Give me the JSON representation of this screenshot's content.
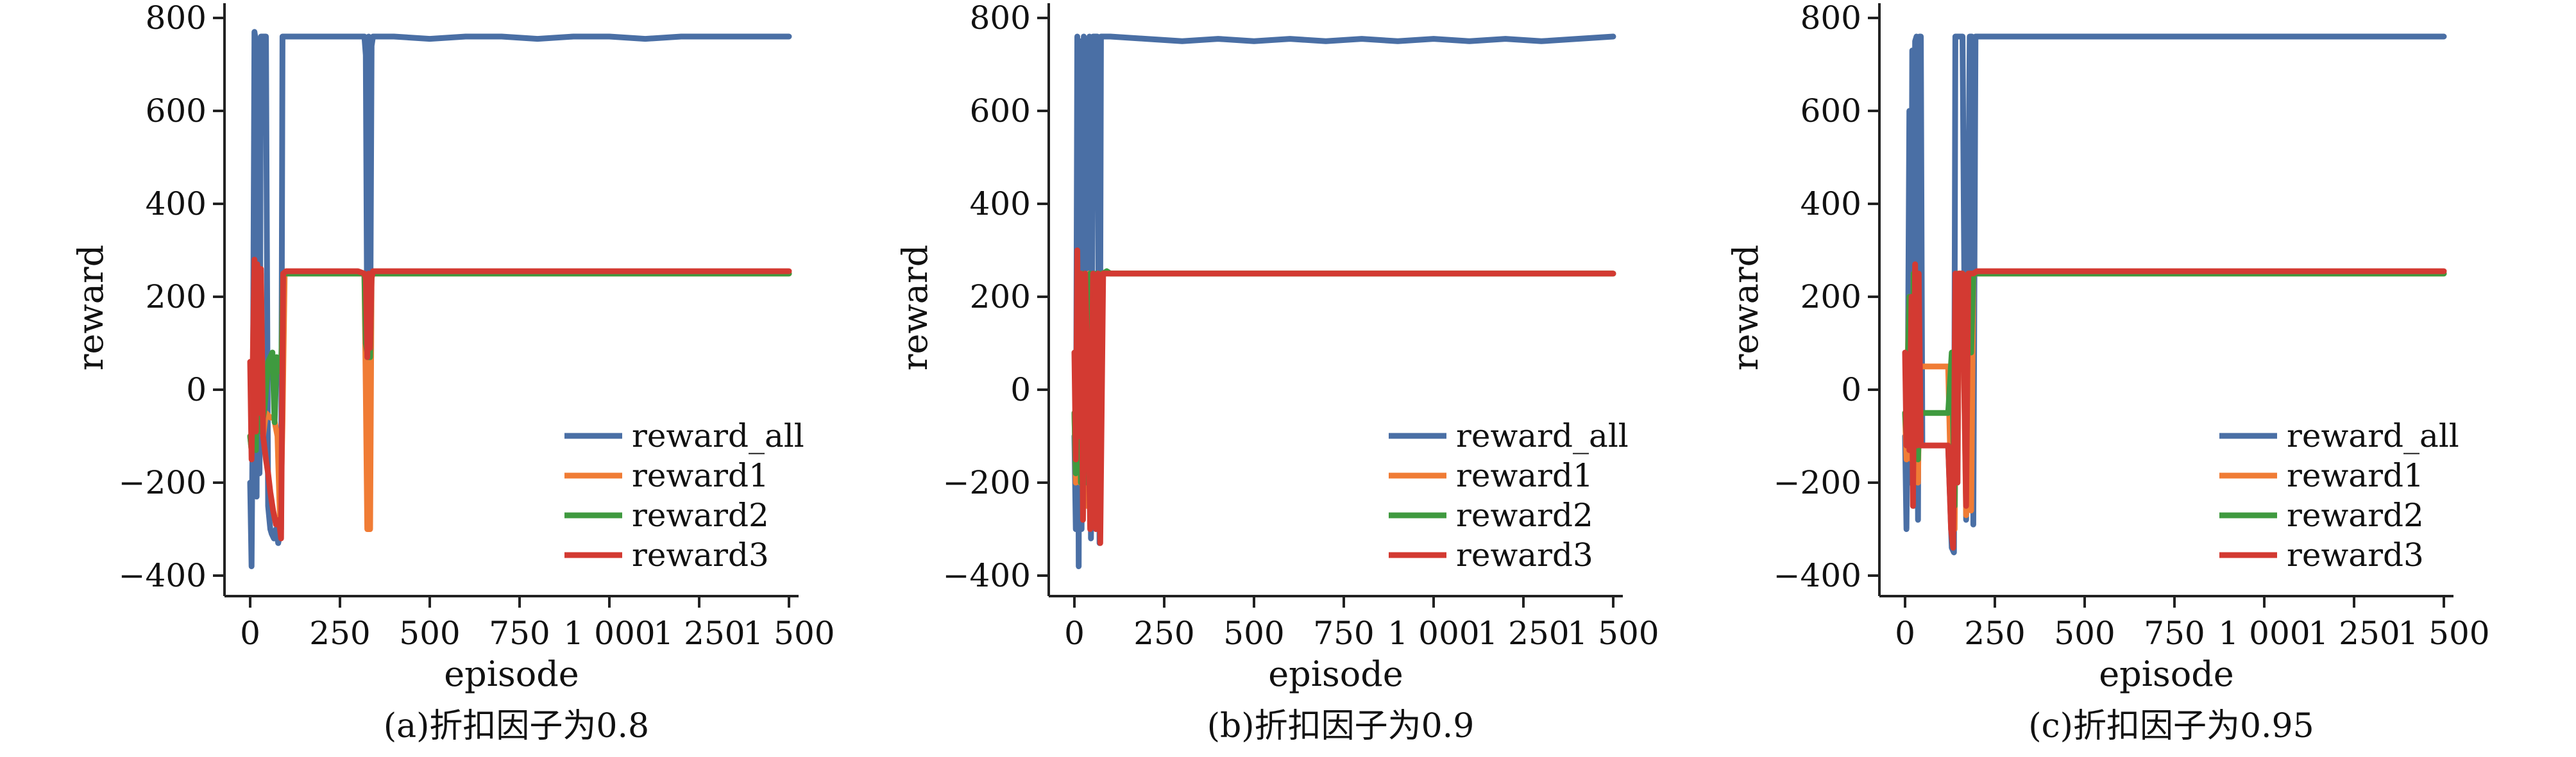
{
  "chart_data": [
    {
      "type": "line",
      "caption": "(a)折扣因子为0.8",
      "xlabel": "episode",
      "ylabel": "reward",
      "xlim": [
        0,
        1500
      ],
      "ylim": [
        -400,
        800
      ],
      "xticks": [
        0,
        250,
        500,
        750,
        1000,
        1250,
        1500
      ],
      "xtick_labels": [
        "0",
        "250",
        "500",
        "750",
        "1 000",
        "1 250",
        "1 500"
      ],
      "yticks": [
        -400,
        -200,
        0,
        200,
        400,
        600,
        800
      ],
      "ytick_labels": [
        "−400",
        "−200",
        "0",
        "200",
        "400",
        "600",
        "800"
      ],
      "legend_position": "lower-right",
      "series": [
        {
          "name": "reward_all",
          "color": "#4a6fa5",
          "x": [
            0,
            4,
            8,
            12,
            14,
            18,
            22,
            26,
            30,
            36,
            44,
            50,
            56,
            60,
            66,
            72,
            78,
            86,
            90,
            94,
            98,
            100,
            150,
            200,
            250,
            300,
            318,
            322,
            326,
            330,
            334,
            338,
            342,
            400,
            500,
            600,
            700,
            800,
            900,
            1000,
            1100,
            1200,
            1300,
            1400,
            1500
          ],
          "y": [
            -200,
            -380,
            50,
            770,
            760,
            -230,
            720,
            -180,
            760,
            760,
            760,
            -250,
            -300,
            -310,
            -320,
            -300,
            -330,
            -300,
            760,
            760,
            760,
            760,
            760,
            760,
            760,
            760,
            760,
            720,
            80,
            760,
            60,
            740,
            760,
            760,
            755,
            760,
            760,
            755,
            760,
            760,
            755,
            760,
            760,
            760,
            760
          ]
        },
        {
          "name": "reward1",
          "color": "#f07c35",
          "x": [
            0,
            4,
            8,
            12,
            16,
            20,
            26,
            30,
            36,
            44,
            56,
            66,
            76,
            84,
            90,
            96,
            100,
            200,
            300,
            318,
            322,
            326,
            330,
            334,
            338,
            342,
            400,
            600,
            800,
            1000,
            1200,
            1400,
            1500
          ],
          "y": [
            -100,
            -130,
            40,
            270,
            -80,
            260,
            -80,
            250,
            -100,
            -50,
            -60,
            -60,
            -100,
            -300,
            -70,
            250,
            250,
            250,
            250,
            250,
            0,
            -300,
            -300,
            -300,
            250,
            250,
            250,
            250,
            250,
            250,
            250,
            250,
            250
          ]
        },
        {
          "name": "reward2",
          "color": "#3f9a3f",
          "x": [
            0,
            4,
            8,
            12,
            16,
            22,
            30,
            40,
            50,
            56,
            62,
            68,
            74,
            80,
            86,
            92,
            100,
            200,
            300,
            318,
            322,
            326,
            330,
            334,
            338,
            342,
            500,
            700,
            900,
            1100,
            1300,
            1500
          ],
          "y": [
            -100,
            -130,
            60,
            250,
            -130,
            250,
            -90,
            -40,
            60,
            70,
            80,
            -70,
            70,
            40,
            40,
            250,
            250,
            250,
            250,
            250,
            100,
            80,
            70,
            70,
            250,
            250,
            250,
            250,
            250,
            250,
            250,
            250
          ]
        },
        {
          "name": "reward3",
          "color": "#d33a32",
          "x": [
            0,
            4,
            8,
            12,
            16,
            20,
            26,
            30,
            36,
            44,
            50,
            56,
            64,
            72,
            80,
            86,
            92,
            100,
            200,
            300,
            318,
            322,
            326,
            330,
            334,
            338,
            342,
            400,
            600,
            800,
            1000,
            1200,
            1400,
            1500
          ],
          "y": [
            60,
            -150,
            100,
            280,
            -90,
            270,
            -50,
            260,
            -100,
            -150,
            -180,
            -220,
            -260,
            -290,
            -280,
            -320,
            250,
            255,
            255,
            255,
            250,
            240,
            70,
            250,
            90,
            240,
            255,
            255,
            255,
            255,
            255,
            255,
            255,
            255
          ]
        }
      ]
    },
    {
      "type": "line",
      "caption": "(b)折扣因子为0.9",
      "xlabel": "episode",
      "ylabel": "reward",
      "xlim": [
        0,
        1500
      ],
      "ylim": [
        -400,
        800
      ],
      "xticks": [
        0,
        250,
        500,
        750,
        1000,
        1250,
        1500
      ],
      "xtick_labels": [
        "0",
        "250",
        "500",
        "750",
        "1 000",
        "1 250",
        "1 500"
      ],
      "yticks": [
        -400,
        -200,
        0,
        200,
        400,
        600,
        800
      ],
      "ytick_labels": [
        "−400",
        "−200",
        "0",
        "200",
        "400",
        "600",
        "800"
      ],
      "legend_position": "lower-right",
      "series": [
        {
          "name": "reward_all",
          "color": "#4a6fa5",
          "x": [
            0,
            4,
            8,
            12,
            16,
            20,
            26,
            30,
            36,
            42,
            46,
            52,
            58,
            64,
            70,
            74,
            80,
            86,
            90,
            100,
            200,
            300,
            400,
            500,
            600,
            700,
            800,
            900,
            1000,
            1100,
            1200,
            1300,
            1400,
            1500
          ],
          "y": [
            -100,
            -300,
            760,
            -380,
            750,
            -300,
            760,
            740,
            -200,
            760,
            -320,
            760,
            760,
            760,
            -330,
            760,
            760,
            760,
            760,
            760,
            755,
            750,
            755,
            750,
            755,
            750,
            755,
            750,
            755,
            750,
            755,
            750,
            755,
            760
          ]
        },
        {
          "name": "reward1",
          "color": "#f07c35",
          "x": [
            0,
            4,
            8,
            12,
            16,
            22,
            28,
            34,
            40,
            48,
            56,
            64,
            70,
            76,
            84,
            90,
            100,
            300,
            500,
            700,
            900,
            1100,
            1300,
            1500
          ],
          "y": [
            -50,
            -200,
            80,
            250,
            -200,
            250,
            100,
            -250,
            250,
            50,
            -250,
            250,
            -280,
            250,
            250,
            250,
            250,
            250,
            250,
            250,
            250,
            250,
            250,
            250
          ]
        },
        {
          "name": "reward2",
          "color": "#3f9a3f",
          "x": [
            0,
            4,
            8,
            12,
            18,
            24,
            30,
            36,
            44,
            52,
            60,
            66,
            72,
            80,
            90,
            100,
            300,
            500,
            700,
            900,
            1100,
            1300,
            1500
          ],
          "y": [
            -50,
            -180,
            80,
            240,
            -200,
            250,
            60,
            -200,
            250,
            -250,
            250,
            -250,
            250,
            250,
            255,
            250,
            250,
            250,
            250,
            250,
            250,
            250,
            250
          ]
        },
        {
          "name": "reward3",
          "color": "#d33a32",
          "x": [
            0,
            4,
            8,
            12,
            18,
            24,
            30,
            36,
            44,
            52,
            60,
            66,
            72,
            80,
            90,
            100,
            300,
            500,
            700,
            900,
            1100,
            1300,
            1500
          ],
          "y": [
            80,
            -150,
            300,
            -100,
            250,
            -280,
            250,
            60,
            -300,
            250,
            -300,
            250,
            -330,
            250,
            250,
            250,
            250,
            250,
            250,
            250,
            250,
            250,
            250
          ]
        }
      ]
    },
    {
      "type": "line",
      "caption": "(c)折扣因子为0.95",
      "xlabel": "episode",
      "ylabel": "reward",
      "xlim": [
        0,
        1500
      ],
      "ylim": [
        -400,
        800
      ],
      "xticks": [
        0,
        250,
        500,
        750,
        1000,
        1250,
        1500
      ],
      "xtick_labels": [
        "0",
        "250",
        "500",
        "750",
        "1 000",
        "1 250",
        "1 500"
      ],
      "yticks": [
        -400,
        -200,
        0,
        200,
        400,
        600,
        800
      ],
      "ytick_labels": [
        "−400",
        "−200",
        "0",
        "200",
        "400",
        "600",
        "800"
      ],
      "legend_position": "lower-right",
      "series": [
        {
          "name": "reward_all",
          "color": "#4a6fa5",
          "x": [
            0,
            4,
            8,
            12,
            16,
            20,
            24,
            28,
            32,
            36,
            40,
            44,
            48,
            54,
            60,
            70,
            80,
            100,
            120,
            130,
            136,
            140,
            146,
            150,
            160,
            170,
            180,
            186,
            190,
            196,
            200,
            300,
            400,
            600,
            800,
            1000,
            1200,
            1400,
            1500
          ],
          "y": [
            -100,
            -300,
            50,
            600,
            -200,
            730,
            -250,
            750,
            760,
            -280,
            760,
            760,
            -120,
            -120,
            -120,
            -120,
            -120,
            -120,
            -120,
            -340,
            -350,
            760,
            760,
            760,
            760,
            -280,
            760,
            760,
            -290,
            760,
            760,
            760,
            760,
            760,
            760,
            760,
            760,
            760,
            760
          ]
        },
        {
          "name": "reward1",
          "color": "#f07c35",
          "x": [
            0,
            4,
            8,
            12,
            18,
            24,
            30,
            36,
            40,
            46,
            54,
            60,
            80,
            100,
            120,
            130,
            138,
            144,
            150,
            160,
            170,
            176,
            184,
            190,
            196,
            200,
            300,
            500,
            700,
            900,
            1100,
            1300,
            1500
          ],
          "y": [
            -50,
            -150,
            80,
            200,
            -150,
            250,
            60,
            -200,
            50,
            50,
            50,
            50,
            50,
            50,
            50,
            -280,
            -300,
            250,
            250,
            250,
            -270,
            250,
            -260,
            250,
            250,
            250,
            250,
            250,
            250,
            250,
            250,
            250,
            250
          ]
        },
        {
          "name": "reward2",
          "color": "#3f9a3f",
          "x": [
            0,
            4,
            8,
            12,
            18,
            24,
            30,
            36,
            40,
            50,
            60,
            80,
            100,
            120,
            130,
            138,
            144,
            150,
            160,
            170,
            176,
            184,
            190,
            200,
            300,
            500,
            700,
            900,
            1100,
            1300,
            1500
          ],
          "y": [
            -50,
            -100,
            60,
            200,
            -120,
            250,
            30,
            -150,
            -50,
            -50,
            -50,
            -50,
            -50,
            -50,
            80,
            -250,
            250,
            80,
            250,
            -200,
            250,
            80,
            250,
            250,
            250,
            250,
            250,
            250,
            250,
            250,
            250
          ]
        },
        {
          "name": "reward3",
          "color": "#d33a32",
          "x": [
            0,
            4,
            8,
            12,
            18,
            22,
            28,
            34,
            38,
            44,
            50,
            60,
            80,
            100,
            120,
            128,
            134,
            140,
            146,
            150,
            160,
            170,
            176,
            184,
            190,
            200,
            300,
            500,
            700,
            900,
            1100,
            1300,
            1500
          ],
          "y": [
            80,
            -120,
            50,
            -130,
            200,
            -250,
            270,
            -120,
            250,
            -120,
            -120,
            -120,
            -120,
            -120,
            -120,
            -300,
            -340,
            250,
            -200,
            250,
            250,
            -250,
            250,
            250,
            250,
            255,
            255,
            255,
            255,
            255,
            255,
            255,
            255
          ]
        }
      ]
    }
  ]
}
